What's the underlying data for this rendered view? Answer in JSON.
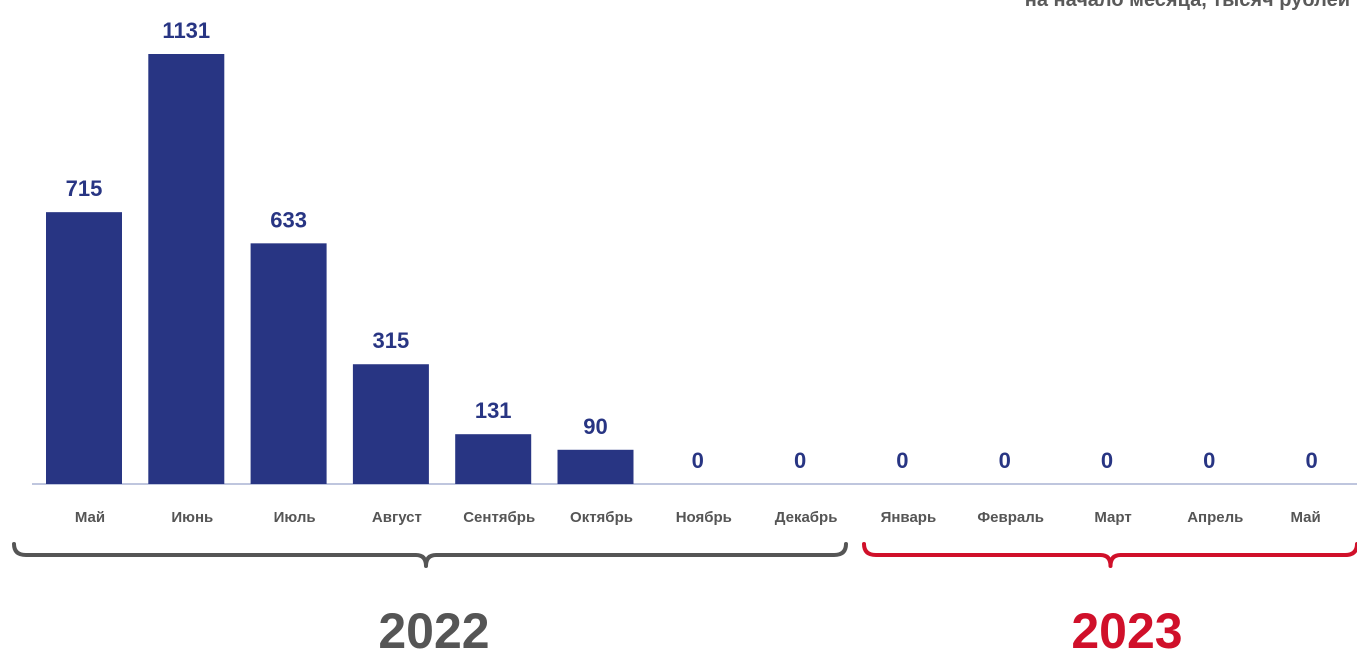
{
  "chart_data": {
    "type": "bar",
    "subtitle": "на начало месяца, тысяч рублей",
    "categories": [
      "Май",
      "Июнь",
      "Июль",
      "Август",
      "Сентябрь",
      "Октябрь",
      "Ноябрь",
      "Декабрь",
      "Январь",
      "Февраль",
      "Март",
      "Апрель",
      "Май"
    ],
    "values": [
      715,
      1131,
      633,
      315,
      131,
      90,
      0,
      0,
      0,
      0,
      0,
      0,
      0
    ],
    "value_labels": [
      "715",
      "1131",
      "633",
      "315",
      "131",
      "90",
      "0",
      "0",
      "0",
      "0",
      "0",
      "0",
      "0"
    ],
    "ylim": [
      0,
      1131
    ],
    "grid": false,
    "groups": [
      {
        "label": "2022",
        "from": 0,
        "to": 7,
        "color": "#555555"
      },
      {
        "label": "2023",
        "from": 8,
        "to": 12,
        "color": "#d0102a"
      }
    ]
  },
  "colors": {
    "bar": "#283583",
    "value_label": "#283583",
    "axis": "#aab4d4"
  }
}
